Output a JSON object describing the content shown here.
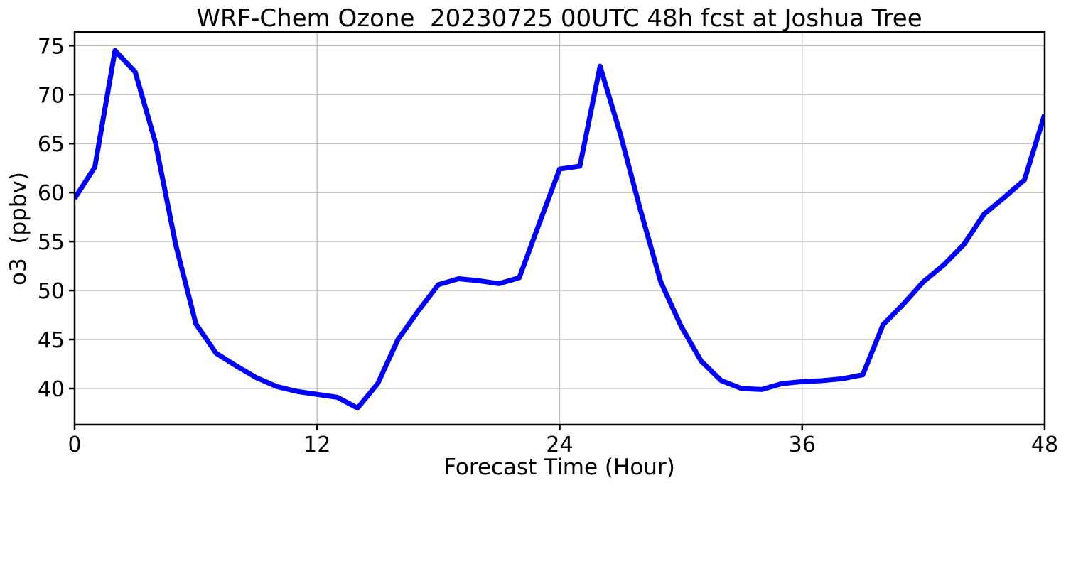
{
  "figure": {
    "background": "#ffffff"
  },
  "chart_data": {
    "type": "line",
    "title": "WRF-Chem Ozone  20230725 00UTC 48h fcst at Joshua Tree",
    "xlabel": "Forecast Time (Hour)",
    "ylabel": "o3  (ppbv)",
    "x": [
      0,
      1,
      2,
      3,
      4,
      5,
      6,
      7,
      8,
      9,
      10,
      11,
      12,
      13,
      14,
      15,
      16,
      17,
      18,
      19,
      20,
      21,
      22,
      23,
      24,
      25,
      26,
      27,
      28,
      29,
      30,
      31,
      32,
      33,
      34,
      35,
      36,
      37,
      38,
      39,
      40,
      41,
      42,
      43,
      44,
      45,
      46,
      47,
      48
    ],
    "values": [
      59.4,
      62.6,
      74.5,
      72.3,
      65.1,
      54.7,
      46.6,
      43.6,
      42.3,
      41.1,
      40.2,
      39.7,
      39.4,
      39.1,
      38.0,
      40.5,
      45.0,
      47.9,
      50.6,
      51.2,
      51.0,
      50.7,
      51.3,
      56.9,
      62.4,
      62.7,
      72.9,
      66.0,
      58.2,
      50.9,
      46.4,
      42.8,
      40.8,
      40.0,
      39.9,
      40.5,
      40.7,
      40.8,
      41.0,
      41.4,
      46.5,
      48.6,
      50.9,
      52.6,
      54.7,
      57.8,
      59.5,
      61.3,
      68.0
    ],
    "xlim": [
      0,
      48
    ],
    "ylim": [
      36.3,
      76.4
    ],
    "xticks": [
      0,
      12,
      24,
      36,
      48
    ],
    "yticks": [
      40,
      45,
      50,
      55,
      60,
      65,
      70,
      75
    ],
    "grid": true,
    "legend": "none",
    "line_color": "#0000ff",
    "grid_color": "#bbbbbb",
    "spine_color": "#000000"
  }
}
